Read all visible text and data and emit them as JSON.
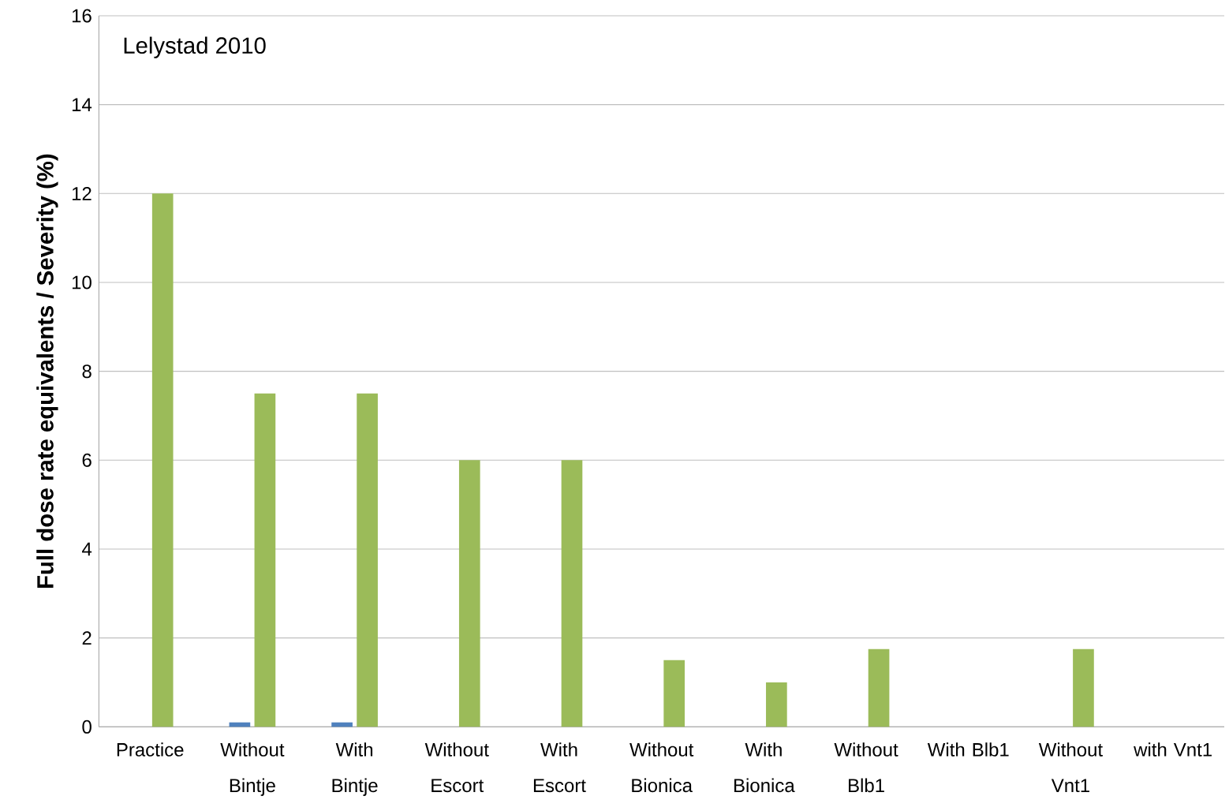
{
  "chart_data": {
    "type": "bar",
    "ylabel": "Full dose rate equivalents / Severity (%)",
    "categories": [
      "Practice",
      "Without Bintje",
      "With Bintje",
      "Without Escort",
      "With Escort",
      "Without Bionica",
      "With Bionica",
      "Without Blb1",
      "With Blb1",
      "Without Vnt1",
      "with Vnt1"
    ],
    "series": [
      {
        "color": "#4f81bd",
        "values": [
          null,
          0.1,
          0.1,
          null,
          null,
          null,
          null,
          null,
          null,
          null,
          null
        ]
      },
      {
        "color": "#9bbb59",
        "values": [
          12,
          7.5,
          7.5,
          6,
          6,
          1.5,
          1.0,
          1.75,
          0,
          1.75,
          0
        ]
      }
    ],
    "ylim": [
      0,
      16
    ],
    "yticks": [
      0,
      2,
      4,
      6,
      8,
      10,
      12,
      14,
      16
    ],
    "grid": "y",
    "annotations": [
      "Lelystad 2010"
    ]
  }
}
